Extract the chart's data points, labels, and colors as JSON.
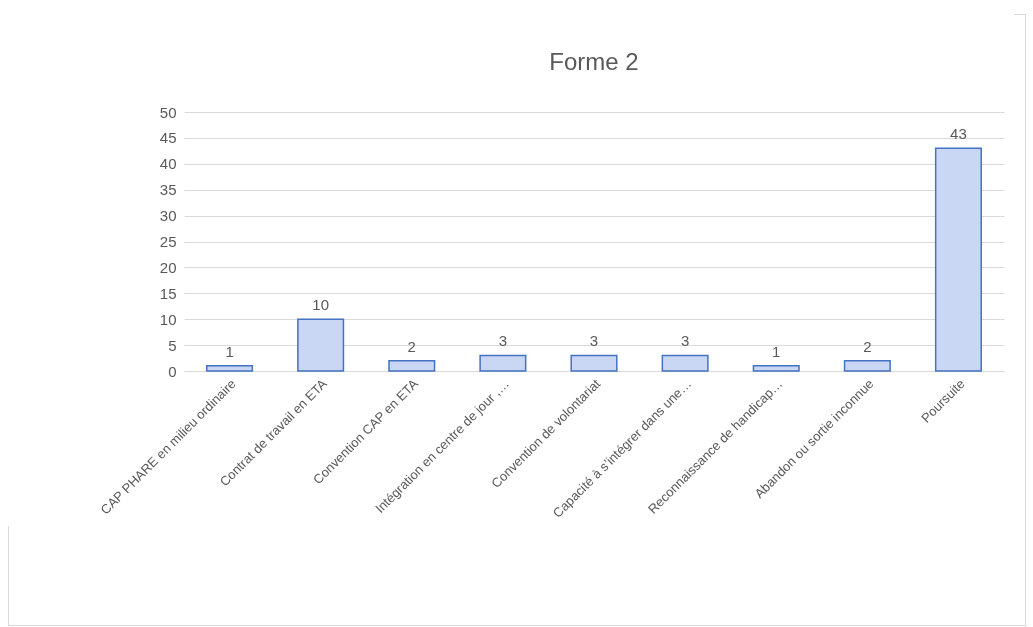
{
  "chart_data": {
    "type": "bar",
    "title": "Forme 2",
    "categories": [
      "CAP PHARE en milieu ordinaire",
      "Contrat de travail en ETA",
      "Convention CAP en ETA",
      "Intégration en centre de jour ,…",
      "Convention de volontariat",
      "Capacité à s’intégrer dans une…",
      "Reconnaissance de handicap…",
      "Abandon ou sortie inconnue",
      "Poursuite"
    ],
    "values": [
      1,
      10,
      2,
      3,
      3,
      3,
      1,
      2,
      43
    ],
    "color": "#c9d7f5",
    "ylim": [
      0,
      50
    ],
    "yticks": [
      0,
      5,
      10,
      15,
      20,
      25,
      30,
      35,
      40,
      45,
      50
    ],
    "grid": "y",
    "data_labels": true
  }
}
